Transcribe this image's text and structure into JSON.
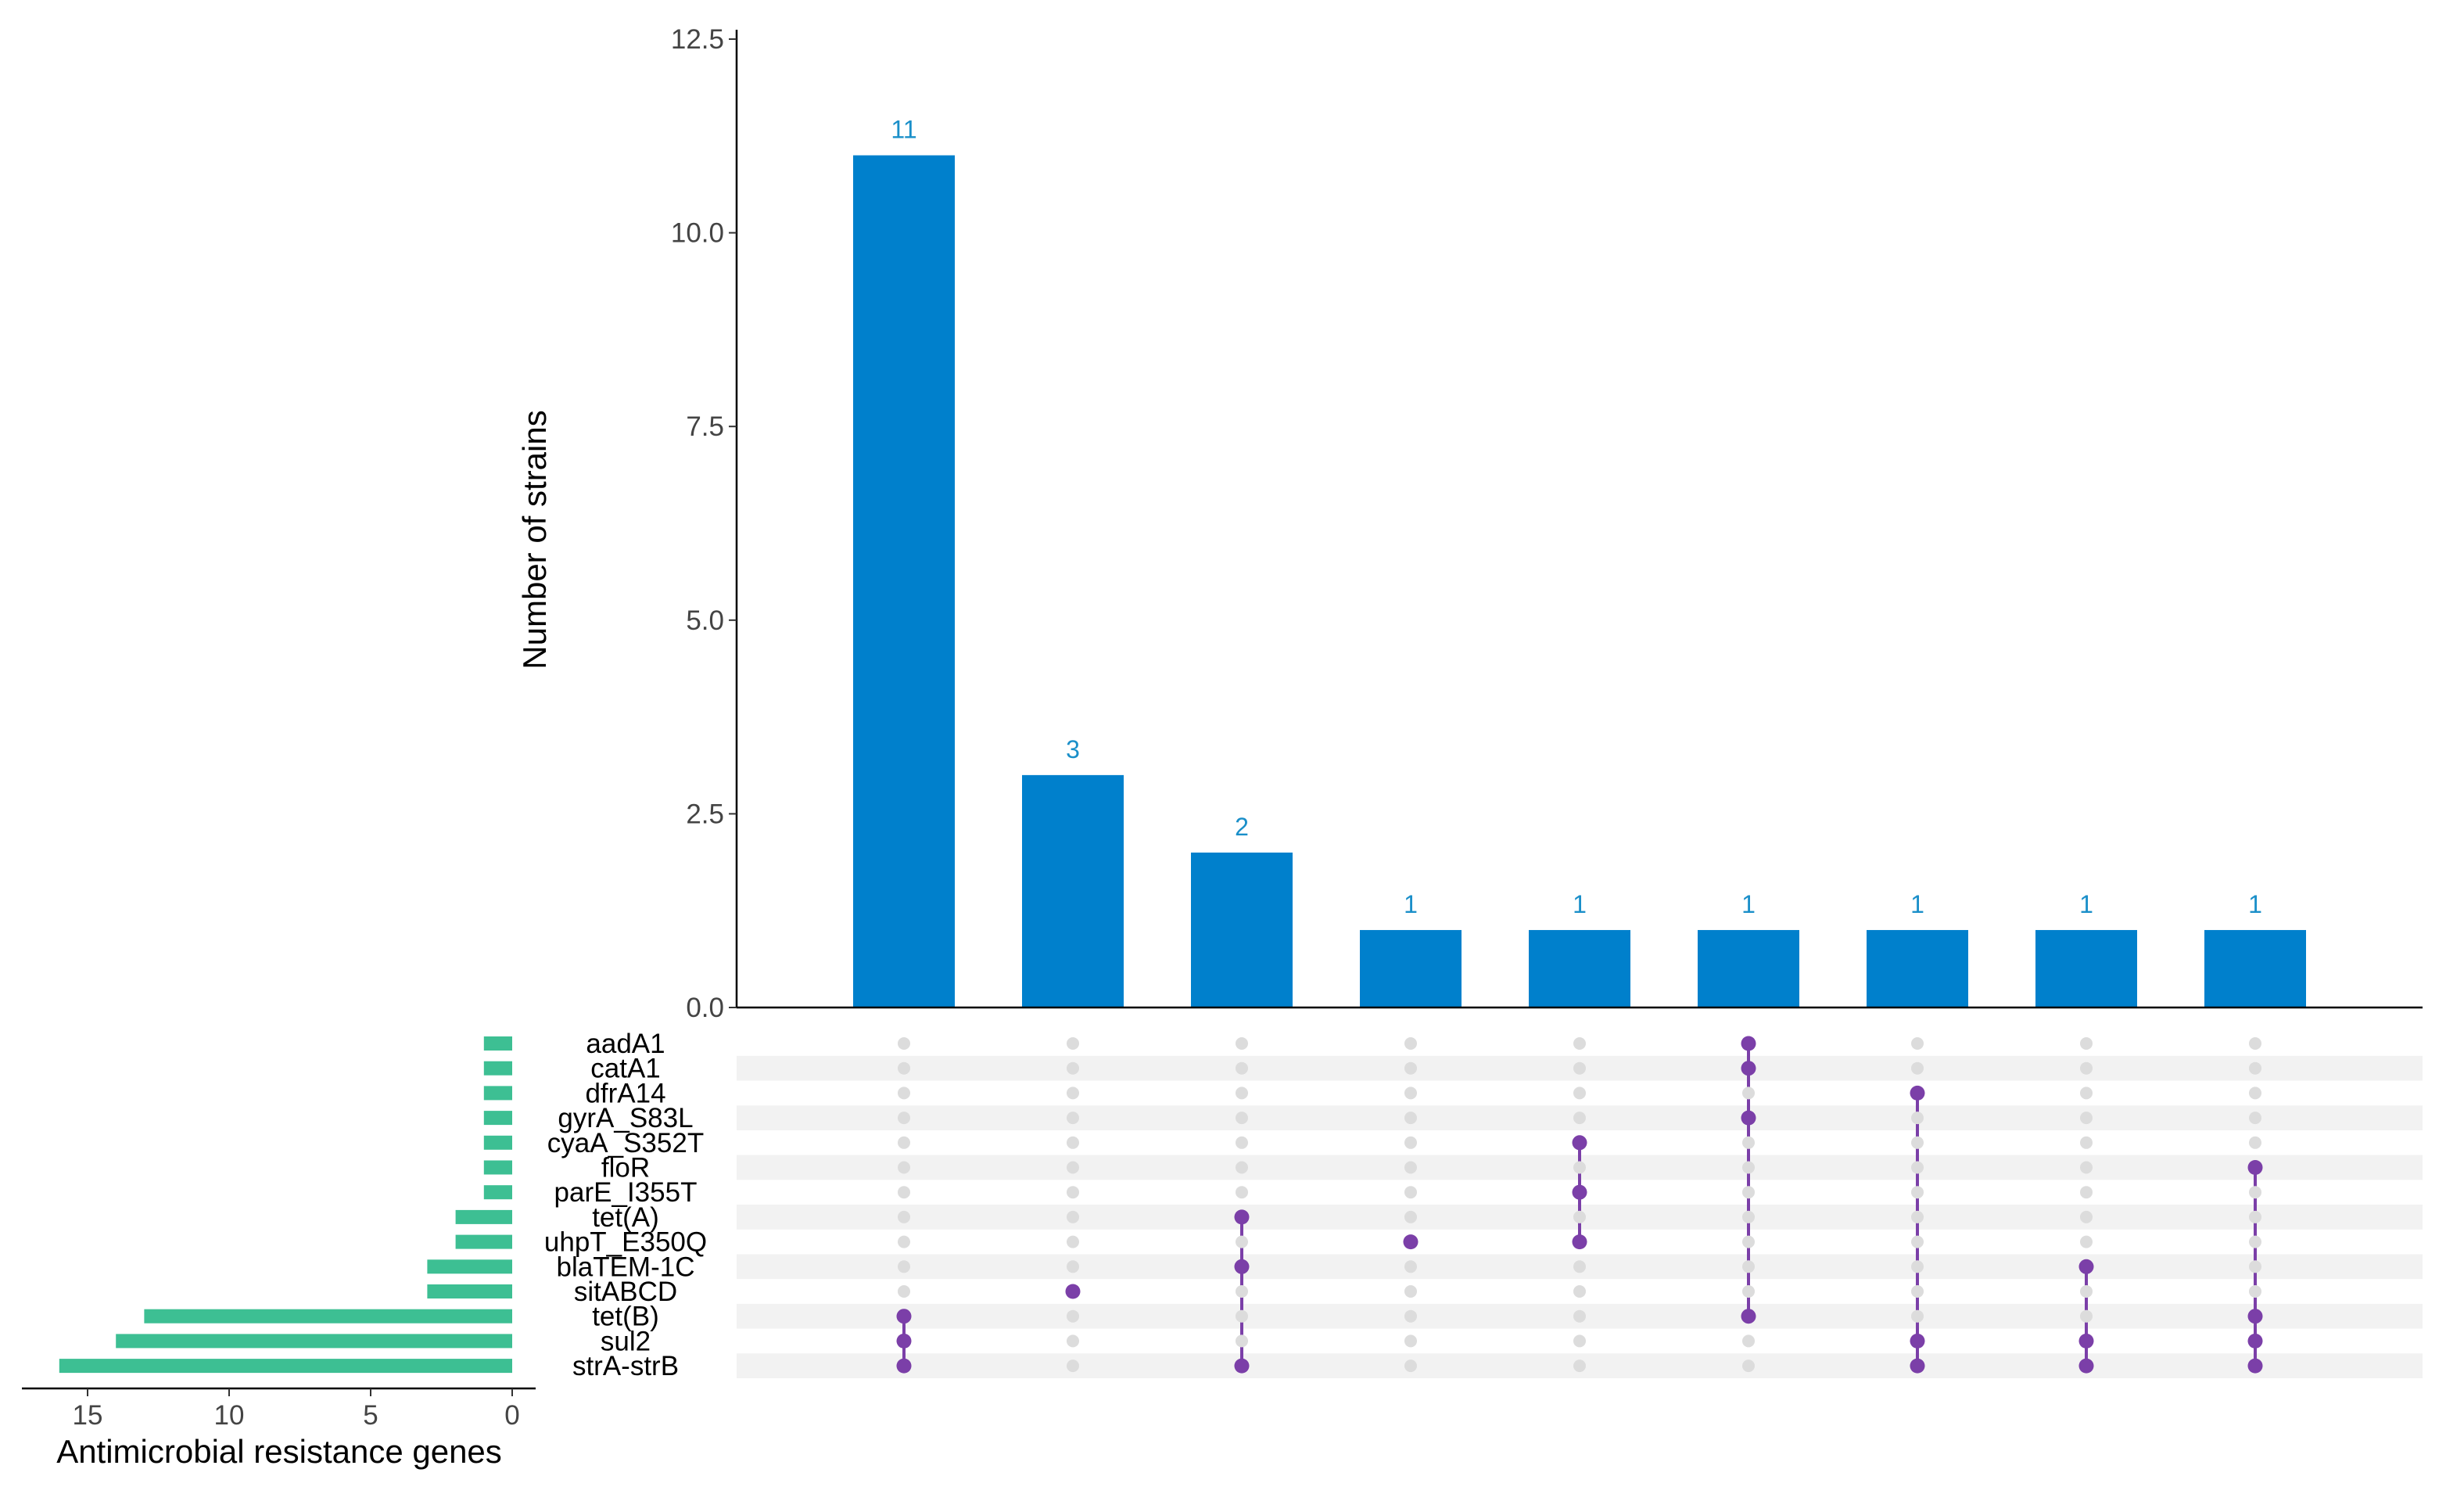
{
  "chart_data": {
    "type": "upset",
    "ylabel": "Number of strains",
    "ylim": [
      0,
      12.5
    ],
    "yticks": [
      0.0,
      2.5,
      5.0,
      7.5,
      10.0,
      12.5
    ],
    "ytick_labels": [
      "0.0",
      "2.5",
      "5.0",
      "7.5",
      "10.0",
      "12.5"
    ],
    "intersections": [
      {
        "count": 11,
        "label": "11",
        "sets": [
          "tet(B)",
          "sul2",
          "strA-strB"
        ]
      },
      {
        "count": 3,
        "label": "3",
        "sets": [
          "sitABCD"
        ]
      },
      {
        "count": 2,
        "label": "2",
        "sets": [
          "tet(A)",
          "blaTEM-1C",
          "strA-strB"
        ]
      },
      {
        "count": 1,
        "label": "1",
        "sets": [
          "uhpT_E350Q"
        ]
      },
      {
        "count": 1,
        "label": "1",
        "sets": [
          "cyaA_S352T",
          "parE_I355T",
          "uhpT_E350Q"
        ]
      },
      {
        "count": 1,
        "label": "1",
        "sets": [
          "aadA1",
          "catA1",
          "gyrA_S83L",
          "tet(B)"
        ]
      },
      {
        "count": 1,
        "label": "1",
        "sets": [
          "dfrA14",
          "sul2",
          "strA-strB"
        ]
      },
      {
        "count": 1,
        "label": "1",
        "sets": [
          "blaTEM-1C",
          "sul2",
          "strA-strB"
        ]
      },
      {
        "count": 1,
        "label": "1",
        "sets": [
          "floR",
          "tet(B)",
          "sul2",
          "strA-strB"
        ]
      }
    ],
    "sets": [
      "aadA1",
      "catA1",
      "dfrA14",
      "gyrA_S83L",
      "cyaA_S352T",
      "floR",
      "parE_I355T",
      "tet(A)",
      "uhpT_E350Q",
      "blaTEM-1C",
      "sitABCD",
      "tet(B)",
      "sul2",
      "strA-strB"
    ],
    "set_sizes": [
      1,
      1,
      1,
      1,
      1,
      1,
      1,
      2,
      2,
      3,
      3,
      13,
      14,
      16
    ],
    "set_size_xlabel": "Antimicrobial resistance genes",
    "set_size_xticks": [
      15,
      10,
      5,
      0
    ],
    "set_size_xtick_labels": [
      "15",
      "10",
      "5",
      "0"
    ],
    "set_size_xlim": [
      0,
      17
    ]
  },
  "colors": {
    "bar": "#0080CC",
    "count_label": "#1A8FC9",
    "set_bar": "#3DBF93",
    "dot_active": "#7B3FA8",
    "dot_inactive": "#DCDCDC",
    "stripe": "#F2F2F2",
    "axis": "#000000"
  }
}
